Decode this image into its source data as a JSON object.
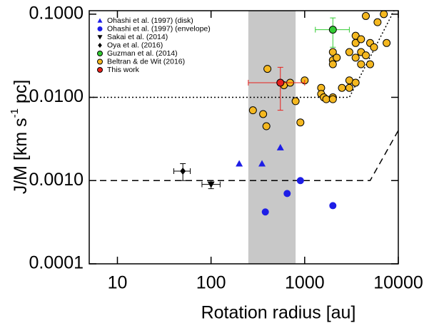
{
  "chart_data": {
    "type": "scatter",
    "xlabel": "Rotation radius [au]",
    "ylabel_parts": [
      "J/M [km s",
      "-1",
      " pc]"
    ],
    "xscale": "log",
    "yscale": "log",
    "xlim": [
      5,
      10000
    ],
    "ylim": [
      0.0001,
      0.11
    ],
    "xticks": [
      10,
      100,
      1000,
      10000
    ],
    "yticks": [
      {
        "value": 0.0001,
        "label": "0.0001"
      },
      {
        "value": 0.001,
        "label": "0.0010"
      },
      {
        "value": 0.01,
        "label": "0.0100"
      },
      {
        "value": 0.1,
        "label": "0.1000"
      }
    ],
    "shaded_xrange": [
      250,
      800
    ],
    "shaded_color": "#c8c8c8",
    "lines": [
      {
        "style": "dashed",
        "color": "#000000",
        "x": [
          5,
          5000,
          10000
        ],
        "y": [
          0.001,
          0.001,
          0.004
        ]
      },
      {
        "style": "dotted",
        "color": "#000000",
        "x": [
          5,
          3000,
          9000
        ],
        "y": [
          0.01,
          0.01,
          0.11
        ]
      }
    ],
    "legend": "upper left",
    "series": [
      {
        "name": "Ohashi et al. (1997) (disk)",
        "marker": "triangle",
        "color": "#1e1ee6",
        "x": [
          200,
          350,
          550
        ],
        "y": [
          0.0016,
          0.0016,
          0.0025
        ]
      },
      {
        "name": "Ohashi et al. (1997) (envelope)",
        "marker": "circle",
        "color": "#1e1ee6",
        "x": [
          380,
          650,
          900,
          2000
        ],
        "y": [
          0.00042,
          0.0007,
          0.001,
          0.0005
        ]
      },
      {
        "name": "Sakai et al. (2014)",
        "marker": "triangle-down",
        "color": "#000000",
        "x": [
          100
        ],
        "y": [
          0.0009
        ],
        "x_err": [
          [
            80,
            125
          ]
        ],
        "y_err": [
          [
            0.0008,
            0.001
          ]
        ]
      },
      {
        "name": "Oya et al. (2016)",
        "marker": "diamond",
        "color": "#000000",
        "x": [
          50
        ],
        "y": [
          0.0013
        ],
        "x_err": [
          [
            40,
            60
          ]
        ],
        "y_err": [
          [
            0.001,
            0.0016
          ]
        ]
      },
      {
        "name": "Guzman et al. (2014)",
        "marker": "circle",
        "color": "#33cc33",
        "edge": "#000000",
        "x": [
          2000
        ],
        "y": [
          0.065
        ],
        "x_err": [
          [
            1300,
            3000
          ]
        ],
        "y_err": [
          [
            0.04,
            0.09
          ]
        ]
      },
      {
        "name": "Beltran & de Wit (2016)",
        "marker": "circle",
        "color": "#f5b820",
        "edge": "#000000",
        "x": [
          280,
          360,
          390,
          400,
          600,
          700,
          800,
          900,
          1000,
          1500,
          1500,
          1600,
          1700,
          2000,
          2000,
          2000,
          2000,
          2200,
          2500,
          2000,
          3000,
          3000,
          3500,
          3000,
          3500,
          4000,
          4000,
          3500,
          3500,
          4000,
          4500,
          5000,
          5000,
          5500,
          6000,
          4500,
          7000,
          7500
        ],
        "y": [
          0.007,
          0.0063,
          0.0045,
          0.022,
          0.014,
          0.015,
          0.009,
          0.005,
          0.016,
          0.013,
          0.011,
          0.01,
          0.0095,
          0.01,
          0.0095,
          0.035,
          0.028,
          0.03,
          0.013,
          0.025,
          0.013,
          0.016,
          0.015,
          0.035,
          0.03,
          0.035,
          0.025,
          0.055,
          0.045,
          0.05,
          0.032,
          0.045,
          0.025,
          0.04,
          0.08,
          0.095,
          0.1,
          0.045
        ]
      },
      {
        "name": "This work",
        "marker": "circle",
        "color": "#e8211d",
        "edge": "#000000",
        "x": [
          550
        ],
        "y": [
          0.015
        ],
        "x_err": [
          [
            250,
            1000
          ]
        ],
        "y_err": [
          [
            0.007,
            0.023
          ]
        ]
      }
    ]
  }
}
